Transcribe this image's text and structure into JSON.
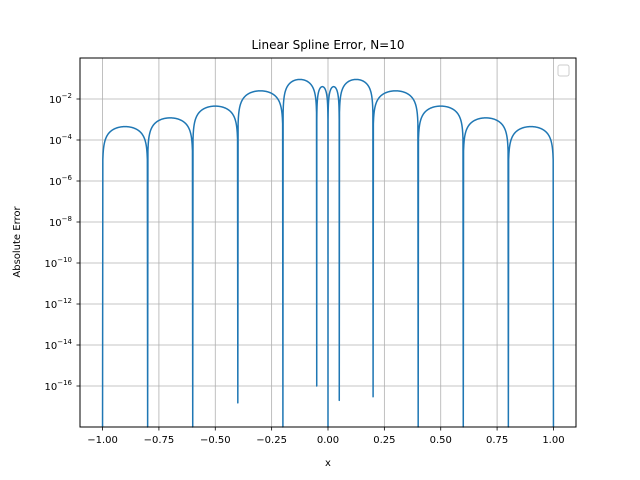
{
  "chart_data": {
    "type": "line",
    "title": "Linear Spline Error, N=10",
    "xlabel": "x",
    "ylabel": "Absolute Error",
    "xlim": [
      -1.1,
      1.1
    ],
    "ylim": [
      1e-18,
      1
    ],
    "yscale": "log",
    "grid": true,
    "legend": "top-right",
    "color": "#1f77b4",
    "x_ticks": [
      -1.0,
      -0.75,
      -0.5,
      -0.25,
      0.0,
      0.25,
      0.5,
      0.75,
      1.0
    ],
    "x_tick_labels": [
      "−1.00",
      "−0.75",
      "−0.50",
      "−0.25",
      "0.00",
      "0.25",
      "0.50",
      "0.75",
      "1.00"
    ],
    "y_ticks": [
      1e-16,
      1e-14,
      1e-12,
      1e-10,
      1e-08,
      1e-06,
      0.0001,
      0.01
    ],
    "y_tick_exponents": [
      "−16",
      "−14",
      "−12",
      "−10",
      "−8",
      "−6",
      "−4",
      "−2"
    ],
    "y_tick_base": "10",
    "knots": [
      -1.0,
      -0.8,
      -0.6,
      -0.4,
      -0.2,
      -0.05,
      0.0,
      0.05,
      0.2,
      0.4,
      0.6,
      0.8,
      1.0
    ],
    "knot_error_floor": [
      1e-18,
      1e-18,
      1e-18,
      1.5e-17,
      1e-18,
      1e-16,
      1e-18,
      2e-17,
      3e-17,
      1e-18,
      1e-18,
      1e-18,
      1e-18
    ],
    "segment_peak_error": [
      0.00045,
      0.0012,
      0.0045,
      0.025,
      0.09,
      0.04,
      0.04,
      0.09,
      0.025,
      0.0045,
      0.0012,
      0.00045
    ]
  }
}
